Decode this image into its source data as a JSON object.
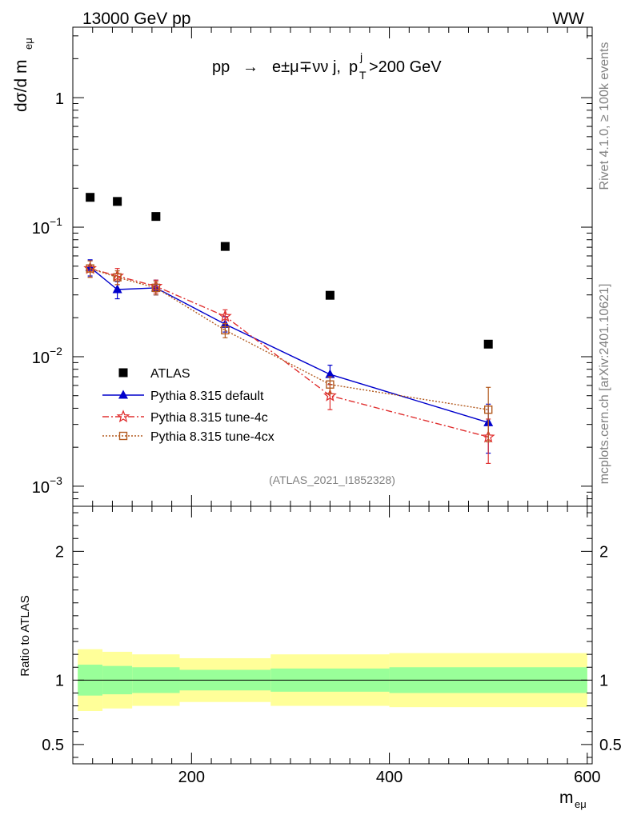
{
  "header": {
    "left_label": "13000 GeV pp",
    "right_label": "WW"
  },
  "side_text": {
    "rivet": "Rivet 4.1.0, ≥ 100k events",
    "mcplots": "mcplots.cern.ch [arXiv:2401.10621]"
  },
  "chart_data": {
    "type": "scatter",
    "title": "pp → e±μ∓νν j, pT j>200 GeV",
    "title_parts": {
      "prefix": "pp",
      "arrow": "→",
      "process": "e±μ∓νν j,",
      "p": "p",
      "sub": "T",
      "sup": "j",
      "cut": ">200 GeV"
    },
    "reference": "(ATLAS_2021_I1852328)",
    "ylabel": "dσ/d m",
    "ylabel_sub": "eμ",
    "xlabel": "m",
    "xlabel_sub": "eμ",
    "ratio_ylabel": "Ratio to ATLAS",
    "xlim": [
      80,
      605
    ],
    "ylim": [
      0.0007,
      3.5
    ],
    "ratio_ylim": [
      0.35,
      2.35
    ],
    "x_ticks": [
      200,
      400,
      600
    ],
    "x_tick_labels": [
      "200",
      "400",
      "600"
    ],
    "y_ticks": [
      0.001,
      0.01,
      0.1,
      1
    ],
    "y_tick_labels": [
      {
        "base": "10",
        "exp": "−3"
      },
      {
        "base": "10",
        "exp": "−2"
      },
      {
        "base": "10",
        "exp": "−1"
      },
      {
        "base": "1",
        "exp": ""
      }
    ],
    "ratio_ticks": [
      0.5,
      1,
      2
    ],
    "ratio_tick_labels": [
      "0.5",
      "1",
      "2"
    ],
    "bins": [
      [
        85,
        110
      ],
      [
        110,
        140
      ],
      [
        140,
        188
      ],
      [
        188,
        280
      ],
      [
        280,
        400
      ],
      [
        400,
        600
      ]
    ],
    "x": [
      97.5,
      125,
      164,
      234,
      340,
      500
    ],
    "series": [
      {
        "name": "ATLAS",
        "marker": "square",
        "color": "#000000",
        "values": [
          0.17,
          0.158,
          0.121,
          0.071,
          0.0298,
          0.0125
        ],
        "band_green": [
          [
            0.88,
            1.12
          ],
          [
            0.89,
            1.11
          ],
          [
            0.9,
            1.1
          ],
          [
            0.92,
            1.08
          ],
          [
            0.91,
            1.09
          ],
          [
            0.9,
            1.1
          ]
        ],
        "band_yellow": [
          [
            0.76,
            1.24
          ],
          [
            0.78,
            1.22
          ],
          [
            0.8,
            1.2
          ],
          [
            0.83,
            1.17
          ],
          [
            0.8,
            1.2
          ],
          [
            0.79,
            1.21
          ]
        ]
      },
      {
        "name": "Pythia 8.315 default",
        "marker": "triangle",
        "color": "#0000cc",
        "dash": "",
        "values": [
          0.049,
          0.033,
          0.034,
          0.0178,
          0.0073,
          0.0031
        ],
        "errors": [
          [
            0.042,
            0.056
          ],
          [
            0.028,
            0.038
          ],
          [
            0.03,
            0.039
          ],
          [
            0.0155,
            0.0204
          ],
          [
            0.0061,
            0.0086
          ],
          [
            0.0018,
            0.0043
          ]
        ]
      },
      {
        "name": "Pythia 8.315 tune-4c",
        "marker": "star",
        "color": "#e03030",
        "dash": "8,3,2,3",
        "values": [
          0.048,
          0.042,
          0.035,
          0.0205,
          0.005,
          0.0024
        ],
        "errors": [
          [
            0.041,
            0.055
          ],
          [
            0.036,
            0.048
          ],
          [
            0.031,
            0.039
          ],
          [
            0.018,
            0.023
          ],
          [
            0.0039,
            0.0061
          ],
          [
            0.0015,
            0.0033
          ]
        ]
      },
      {
        "name": "Pythia 8.315 tune-4cx",
        "marker": "open-square",
        "color": "#b35a1f",
        "dash": "2,2",
        "values": [
          0.048,
          0.041,
          0.034,
          0.016,
          0.0061,
          0.0039
        ],
        "errors": [
          [
            0.041,
            0.055
          ],
          [
            0.036,
            0.046
          ],
          [
            0.03,
            0.038
          ],
          [
            0.014,
            0.018
          ],
          [
            0.0052,
            0.007
          ],
          [
            0.0022,
            0.0058
          ]
        ]
      }
    ]
  }
}
